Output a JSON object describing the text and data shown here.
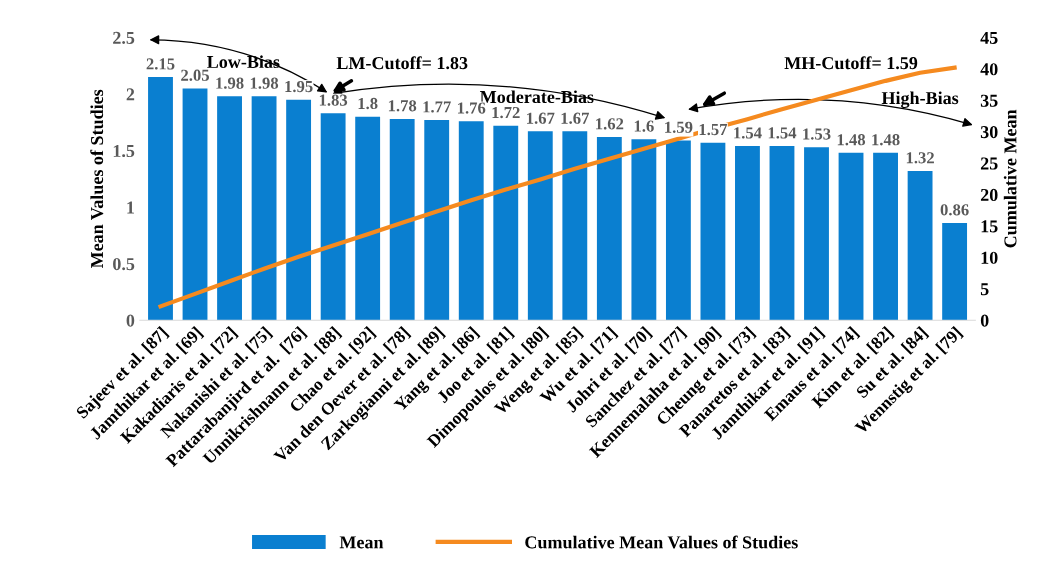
{
  "chart_data": {
    "type": "bar",
    "ylabel": "Mean Values of Studies",
    "y2label": "Cumulative Mean",
    "categories": [
      "Sajeev et al. [87]",
      "Jamthikar et al. [69]",
      "Kakadiaris et al. [72]",
      "Nakanishi et al. [75]",
      "Pattarabanjird et al.  [76]",
      "Unnikrishnann et al. [88]",
      "Chao et al. [92]",
      "Van den Oever et al. [78]",
      "Zarkogianni et al. [89]",
      "Yang et al. [86]",
      "Joo et al. [81]",
      "Dimopoulos et al. [80]",
      "Weng et al. [85]",
      "Wu et al. [71]",
      "Johri et al. [70]",
      "Sanchez et al. [77]",
      "Kennemalaha et al. [90]",
      "Cheung et al. [73]",
      "Panaretos et al. [83]",
      "Jamthikar et al. [91]",
      "Emaus et al. [74]",
      "Kim et al. [82]",
      "Su et al. [84]",
      "Wennstig et al. [79]"
    ],
    "series": [
      {
        "name": "Mean",
        "color": "#0a7fd0",
        "data_labels": true,
        "values": [
          2.15,
          2.05,
          1.98,
          1.98,
          1.95,
          1.83,
          1.8,
          1.78,
          1.77,
          1.76,
          1.72,
          1.67,
          1.67,
          1.62,
          1.6,
          1.59,
          1.57,
          1.54,
          1.54,
          1.53,
          1.48,
          1.48,
          1.32,
          0.86
        ]
      },
      {
        "name": "Cumulative Mean Values of Studies",
        "type": "line",
        "axis": "y2",
        "color": "#f58a1f",
        "values": [
          2.2,
          4.2,
          6.2,
          8.2,
          10.1,
          11.9,
          13.7,
          15.5,
          17.3,
          19.1,
          20.8,
          22.4,
          24.1,
          25.7,
          27.3,
          28.9,
          30.5,
          32.0,
          33.6,
          35.1,
          36.6,
          38.1,
          39.4,
          40.2
        ]
      }
    ],
    "ylim": [
      0,
      2.5
    ],
    "yticks": [
      0,
      0.5,
      1,
      1.5,
      2,
      2.5
    ],
    "y2lim": [
      0,
      45
    ],
    "y2ticks": [
      0,
      5,
      10,
      15,
      20,
      25,
      30,
      35,
      40,
      45
    ],
    "grid": false,
    "legend": "bottom",
    "annotations": [
      "Low-Bias",
      "LM-Cutoff= 1.83",
      "Moderate-Bias",
      "MH-Cutoff= 1.59",
      "High-Bias"
    ]
  }
}
